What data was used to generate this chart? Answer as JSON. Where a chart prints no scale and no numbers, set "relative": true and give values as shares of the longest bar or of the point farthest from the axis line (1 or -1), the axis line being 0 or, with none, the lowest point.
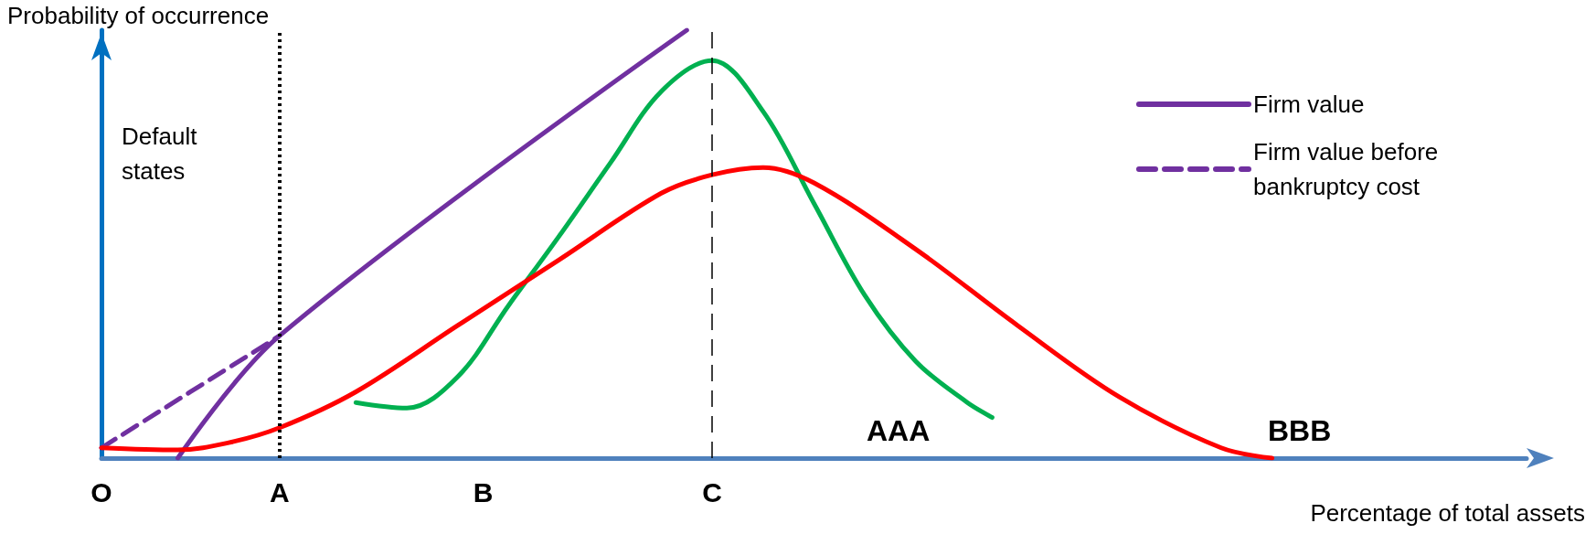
{
  "chart_data": {
    "type": "line",
    "relative": true,
    "xlabel": "Percentage of total assets",
    "ylabel": "Probability of occurrence",
    "categories": [
      "O",
      null,
      null,
      null,
      null,
      null,
      null,
      "A",
      null,
      null,
      null,
      null,
      null,
      null,
      null,
      "B",
      null,
      null,
      null,
      null,
      null,
      null,
      null,
      null,
      "C",
      null,
      null,
      null,
      null,
      null,
      null,
      null,
      null,
      null,
      null,
      null,
      null,
      null,
      null,
      null,
      null,
      null,
      null,
      null,
      null,
      null,
      null,
      null,
      null,
      null,
      null,
      null,
      null,
      null,
      null,
      null,
      null
    ],
    "series": [
      {
        "name": "Firm value",
        "color": "#7030a0",
        "line_style": "solid",
        "values": [
          null,
          null,
          null,
          0,
          null,
          null,
          null,
          0.286,
          null,
          null,
          null,
          null,
          null,
          null,
          null,
          null,
          null,
          null,
          null,
          null,
          null,
          null,
          null,
          1.0,
          null,
          null,
          null,
          null,
          null,
          null,
          null,
          null,
          null,
          null,
          null,
          null,
          null,
          null,
          null,
          null,
          null,
          null,
          null,
          null,
          null,
          null,
          null,
          null,
          null,
          null,
          null,
          null,
          null,
          null,
          null,
          null,
          null
        ]
      },
      {
        "name": "Firm value before bankruptcy cost",
        "color": "#7030a0",
        "line_style": "dashed",
        "values": [
          0.024,
          null,
          null,
          null,
          null,
          null,
          null,
          0.286,
          null,
          null,
          null,
          null,
          null,
          null,
          null,
          null,
          null,
          null,
          null,
          null,
          null,
          null,
          null,
          null,
          null,
          null,
          null,
          null,
          null,
          null,
          null,
          null,
          null,
          null,
          null,
          null,
          null,
          null,
          null,
          null,
          null,
          null,
          null,
          null,
          null,
          null,
          null,
          null,
          null,
          null,
          null,
          null,
          null,
          null,
          null,
          null,
          null
        ]
      },
      {
        "color": "#00b050",
        "line_style": "solid",
        "values": [
          null,
          null,
          null,
          null,
          null,
          null,
          null,
          null,
          null,
          null,
          0.13,
          null,
          0.117,
          null,
          0.19,
          null,
          0.357,
          null,
          0.52,
          null,
          0.69,
          null,
          0.857,
          null,
          0.929,
          null,
          0.81,
          null,
          0.595,
          null,
          0.38,
          null,
          0.226,
          null,
          0.131,
          0.095,
          null,
          null,
          null,
          null,
          null,
          null,
          null,
          null,
          null,
          null,
          null,
          null,
          null,
          null,
          null,
          null,
          null,
          null,
          null,
          null,
          null
        ]
      },
      {
        "color": "#ff0000",
        "line_style": "solid",
        "values": [
          0.024,
          null,
          null,
          0.019,
          null,
          0.036,
          null,
          0.071,
          null,
          null,
          0.155,
          null,
          null,
          null,
          0.31,
          null,
          null,
          null,
          0.464,
          null,
          null,
          null,
          0.619,
          null,
          0.662,
          null,
          0.679,
          null,
          0.643,
          null,
          null,
          null,
          0.488,
          null,
          null,
          null,
          0.31,
          null,
          null,
          null,
          0.143,
          null,
          null,
          null,
          0.024,
          null,
          0,
          null,
          null,
          null,
          null,
          null,
          null,
          null,
          null,
          null,
          null
        ]
      }
    ],
    "ref_lines": [
      {
        "axis": "x",
        "value": "A",
        "color": "#000000",
        "line_style": "dotted"
      },
      {
        "axis": "x",
        "value": "C",
        "color": "#000000",
        "line_style": "dashed"
      }
    ],
    "annotations": [
      "Default states",
      "AAA",
      "BBB"
    ],
    "marker": "none",
    "grid": false,
    "legend": "top right"
  }
}
